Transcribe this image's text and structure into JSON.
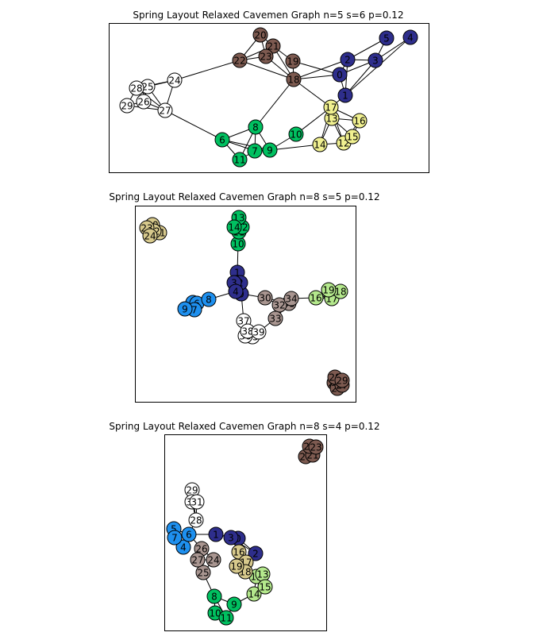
{
  "chart_data": [
    {
      "type": "network",
      "title": "Spring Layout Relaxed Cavemen Graph n=5 s=6 p=0.12",
      "node_labels": [
        "0",
        "1",
        "2",
        "3",
        "4",
        "5",
        "6",
        "7",
        "8",
        "9",
        "10",
        "11",
        "12",
        "13",
        "14",
        "15",
        "16",
        "17",
        "18",
        "19",
        "20",
        "21",
        "22",
        "23",
        "24",
        "25",
        "26",
        "27",
        "28",
        "29"
      ],
      "community_colors": [
        "#2e2e8c",
        "#00c060",
        "#f0f090",
        "#7d5a50",
        "#ffffff"
      ],
      "communities": [
        [
          "0",
          "1",
          "2",
          "3",
          "4",
          "5"
        ],
        [
          "6",
          "7",
          "8",
          "9",
          "10",
          "11"
        ],
        [
          "12",
          "13",
          "14",
          "15",
          "16",
          "17"
        ],
        [
          "18",
          "19",
          "20",
          "21",
          "22",
          "23"
        ],
        [
          "24",
          "25",
          "26",
          "27",
          "28",
          "29"
        ]
      ],
      "edges": [
        [
          "0",
          "1"
        ],
        [
          "0",
          "2"
        ],
        [
          "0",
          "3"
        ],
        [
          "1",
          "2"
        ],
        [
          "1",
          "3"
        ],
        [
          "2",
          "3"
        ],
        [
          "2",
          "5"
        ],
        [
          "3",
          "5"
        ],
        [
          "3",
          "4"
        ],
        [
          "4",
          "1"
        ],
        [
          "0",
          "18"
        ],
        [
          "1",
          "17"
        ],
        [
          "2",
          "18"
        ],
        [
          "6",
          "7"
        ],
        [
          "6",
          "8"
        ],
        [
          "6",
          "11"
        ],
        [
          "7",
          "8"
        ],
        [
          "7",
          "9"
        ],
        [
          "7",
          "11"
        ],
        [
          "8",
          "9"
        ],
        [
          "8",
          "11"
        ],
        [
          "9",
          "10"
        ],
        [
          "6",
          "9"
        ],
        [
          "8",
          "18"
        ],
        [
          "10",
          "17"
        ],
        [
          "6",
          "27"
        ],
        [
          "9",
          "14"
        ],
        [
          "12",
          "13"
        ],
        [
          "12",
          "15"
        ],
        [
          "12",
          "16"
        ],
        [
          "13",
          "15"
        ],
        [
          "13",
          "16"
        ],
        [
          "13",
          "17"
        ],
        [
          "14",
          "17"
        ],
        [
          "14",
          "13"
        ],
        [
          "15",
          "16"
        ],
        [
          "16",
          "17"
        ],
        [
          "12",
          "17"
        ],
        [
          "14",
          "12"
        ],
        [
          "18",
          "19"
        ],
        [
          "18",
          "21"
        ],
        [
          "18",
          "22"
        ],
        [
          "18",
          "23"
        ],
        [
          "19",
          "21"
        ],
        [
          "20",
          "21"
        ],
        [
          "20",
          "22"
        ],
        [
          "20",
          "23"
        ],
        [
          "21",
          "22"
        ],
        [
          "21",
          "23"
        ],
        [
          "22",
          "23"
        ],
        [
          "19",
          "0"
        ],
        [
          "18",
          "17"
        ],
        [
          "22",
          "24"
        ],
        [
          "24",
          "25"
        ],
        [
          "24",
          "27"
        ],
        [
          "24",
          "28"
        ],
        [
          "25",
          "26"
        ],
        [
          "25",
          "28"
        ],
        [
          "25",
          "27"
        ],
        [
          "26",
          "27"
        ],
        [
          "26",
          "29"
        ],
        [
          "27",
          "28"
        ],
        [
          "28",
          "29"
        ],
        [
          "27",
          "29"
        ]
      ]
    },
    {
      "type": "network",
      "title": "Spring Layout Relaxed Cavemen Graph n=8 s=5 p=0.12",
      "node_labels": [
        "0",
        "1",
        "2",
        "3",
        "4",
        "5",
        "6",
        "7",
        "8",
        "9",
        "10",
        "11",
        "12",
        "13",
        "14",
        "15",
        "16",
        "17",
        "18",
        "19",
        "20",
        "21",
        "22",
        "23",
        "24",
        "25",
        "26",
        "27",
        "28",
        "29",
        "30",
        "31",
        "32",
        "33",
        "34",
        "35",
        "36",
        "37",
        "38",
        "39"
      ],
      "community_colors": [
        "#2e2e8c",
        "#1e90ef",
        "#00c060",
        "#b4e88c",
        "#d7c98c",
        "#7d5a50",
        "#a89590",
        "#ffffff"
      ],
      "communities": [
        [
          "0",
          "1",
          "2",
          "3",
          "4"
        ],
        [
          "5",
          "6",
          "7",
          "8",
          "9"
        ],
        [
          "10",
          "11",
          "12",
          "13",
          "14"
        ],
        [
          "15",
          "16",
          "17",
          "18",
          "19"
        ],
        [
          "20",
          "21",
          "22",
          "23",
          "24"
        ],
        [
          "25",
          "26",
          "27",
          "28",
          "29"
        ],
        [
          "30",
          "31",
          "32",
          "33",
          "34"
        ],
        [
          "35",
          "36",
          "37",
          "38",
          "39"
        ]
      ],
      "edges": [
        [
          "0",
          "1"
        ],
        [
          "0",
          "2"
        ],
        [
          "0",
          "3"
        ],
        [
          "0",
          "4"
        ],
        [
          "1",
          "2"
        ],
        [
          "1",
          "3"
        ],
        [
          "2",
          "3"
        ],
        [
          "2",
          "4"
        ],
        [
          "3",
          "4"
        ],
        [
          "1",
          "10"
        ],
        [
          "4",
          "8"
        ],
        [
          "0",
          "30"
        ],
        [
          "0",
          "37"
        ],
        [
          "5",
          "6"
        ],
        [
          "5",
          "7"
        ],
        [
          "5",
          "8"
        ],
        [
          "5",
          "9"
        ],
        [
          "6",
          "7"
        ],
        [
          "6",
          "9"
        ],
        [
          "7",
          "8"
        ],
        [
          "7",
          "9"
        ],
        [
          "10",
          "11"
        ],
        [
          "10",
          "14"
        ],
        [
          "11",
          "12"
        ],
        [
          "11",
          "13"
        ],
        [
          "12",
          "13"
        ],
        [
          "12",
          "14"
        ],
        [
          "13",
          "14"
        ],
        [
          "15",
          "16"
        ],
        [
          "15",
          "17"
        ],
        [
          "15",
          "18"
        ],
        [
          "15",
          "19"
        ],
        [
          "16",
          "17"
        ],
        [
          "16",
          "19"
        ],
        [
          "17",
          "18"
        ],
        [
          "17",
          "19"
        ],
        [
          "16",
          "34"
        ],
        [
          "20",
          "21"
        ],
        [
          "20",
          "22"
        ],
        [
          "20",
          "23"
        ],
        [
          "21",
          "22"
        ],
        [
          "21",
          "24"
        ],
        [
          "22",
          "24"
        ],
        [
          "23",
          "24"
        ],
        [
          "25",
          "26"
        ],
        [
          "25",
          "27"
        ],
        [
          "25",
          "28"
        ],
        [
          "25",
          "29"
        ],
        [
          "26",
          "27"
        ],
        [
          "27",
          "28"
        ],
        [
          "28",
          "29"
        ],
        [
          "30",
          "31"
        ],
        [
          "30",
          "32"
        ],
        [
          "31",
          "32"
        ],
        [
          "31",
          "33"
        ],
        [
          "31",
          "34"
        ],
        [
          "32",
          "34"
        ],
        [
          "32",
          "33"
        ],
        [
          "33",
          "39"
        ],
        [
          "35",
          "36"
        ],
        [
          "35",
          "37"
        ],
        [
          "35",
          "38"
        ],
        [
          "35",
          "39"
        ],
        [
          "36",
          "37"
        ],
        [
          "36",
          "38"
        ],
        [
          "37",
          "38"
        ],
        [
          "38",
          "39"
        ],
        [
          "36",
          "39"
        ]
      ]
    },
    {
      "type": "network",
      "title": "Spring Layout Relaxed Cavemen Graph n=8 s=4 p=0.12",
      "node_labels": [
        "0",
        "1",
        "2",
        "3",
        "4",
        "5",
        "6",
        "7",
        "8",
        "9",
        "10",
        "11",
        "12",
        "13",
        "14",
        "15",
        "16",
        "17",
        "18",
        "19",
        "20",
        "21",
        "22",
        "23",
        "24",
        "25",
        "26",
        "27",
        "28",
        "29",
        "30",
        "31"
      ],
      "community_colors": [
        "#2e2e8c",
        "#1e90ef",
        "#00c060",
        "#b4e88c",
        "#d7c98c",
        "#7d5a50",
        "#a89590",
        "#ffffff"
      ],
      "communities": [
        [
          "0",
          "1",
          "2",
          "3"
        ],
        [
          "4",
          "5",
          "6",
          "7"
        ],
        [
          "8",
          "9",
          "10",
          "11"
        ],
        [
          "12",
          "13",
          "14",
          "15"
        ],
        [
          "16",
          "17",
          "18",
          "19"
        ],
        [
          "20",
          "21",
          "22",
          "23"
        ],
        [
          "24",
          "25",
          "26",
          "27"
        ],
        [
          "28",
          "29",
          "30",
          "31"
        ]
      ],
      "edges": [
        [
          "0",
          "1"
        ],
        [
          "0",
          "2"
        ],
        [
          "0",
          "3"
        ],
        [
          "1",
          "3"
        ],
        [
          "2",
          "3"
        ],
        [
          "1",
          "6"
        ],
        [
          "2",
          "18"
        ],
        [
          "4",
          "5"
        ],
        [
          "4",
          "6"
        ],
        [
          "5",
          "6"
        ],
        [
          "5",
          "7"
        ],
        [
          "6",
          "7"
        ],
        [
          "6",
          "28"
        ],
        [
          "6",
          "26"
        ],
        [
          "8",
          "9"
        ],
        [
          "8",
          "10"
        ],
        [
          "8",
          "11"
        ],
        [
          "9",
          "11"
        ],
        [
          "10",
          "11"
        ],
        [
          "8",
          "25"
        ],
        [
          "9",
          "14"
        ],
        [
          "12",
          "13"
        ],
        [
          "12",
          "14"
        ],
        [
          "12",
          "15"
        ],
        [
          "13",
          "15"
        ],
        [
          "14",
          "15"
        ],
        [
          "12",
          "17"
        ],
        [
          "16",
          "17"
        ],
        [
          "16",
          "18"
        ],
        [
          "16",
          "19"
        ],
        [
          "17",
          "18"
        ],
        [
          "17",
          "19"
        ],
        [
          "18",
          "19"
        ],
        [
          "3",
          "16"
        ],
        [
          "20",
          "21"
        ],
        [
          "20",
          "22"
        ],
        [
          "20",
          "23"
        ],
        [
          "21",
          "22"
        ],
        [
          "21",
          "23"
        ],
        [
          "22",
          "23"
        ],
        [
          "24",
          "25"
        ],
        [
          "24",
          "26"
        ],
        [
          "24",
          "27"
        ],
        [
          "25",
          "27"
        ],
        [
          "26",
          "27"
        ],
        [
          "28",
          "29"
        ],
        [
          "28",
          "30"
        ],
        [
          "28",
          "31"
        ],
        [
          "29",
          "30"
        ],
        [
          "29",
          "31"
        ],
        [
          "30",
          "31"
        ]
      ]
    }
  ]
}
